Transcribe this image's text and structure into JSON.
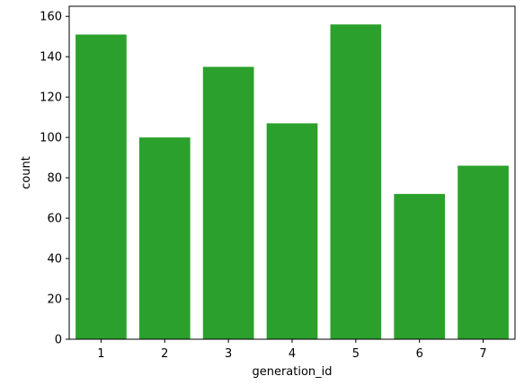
{
  "chart_data": {
    "type": "bar",
    "categories": [
      "1",
      "2",
      "3",
      "4",
      "5",
      "6",
      "7"
    ],
    "values": [
      151,
      100,
      135,
      107,
      156,
      72,
      86
    ],
    "xlabel": "generation_id",
    "ylabel": "count",
    "ylim": [
      0,
      165
    ],
    "yticks": [
      0,
      20,
      40,
      60,
      80,
      100,
      120,
      140,
      160
    ],
    "grid": false,
    "bar_color": "#2ca02c",
    "spine_color": "#000000"
  }
}
